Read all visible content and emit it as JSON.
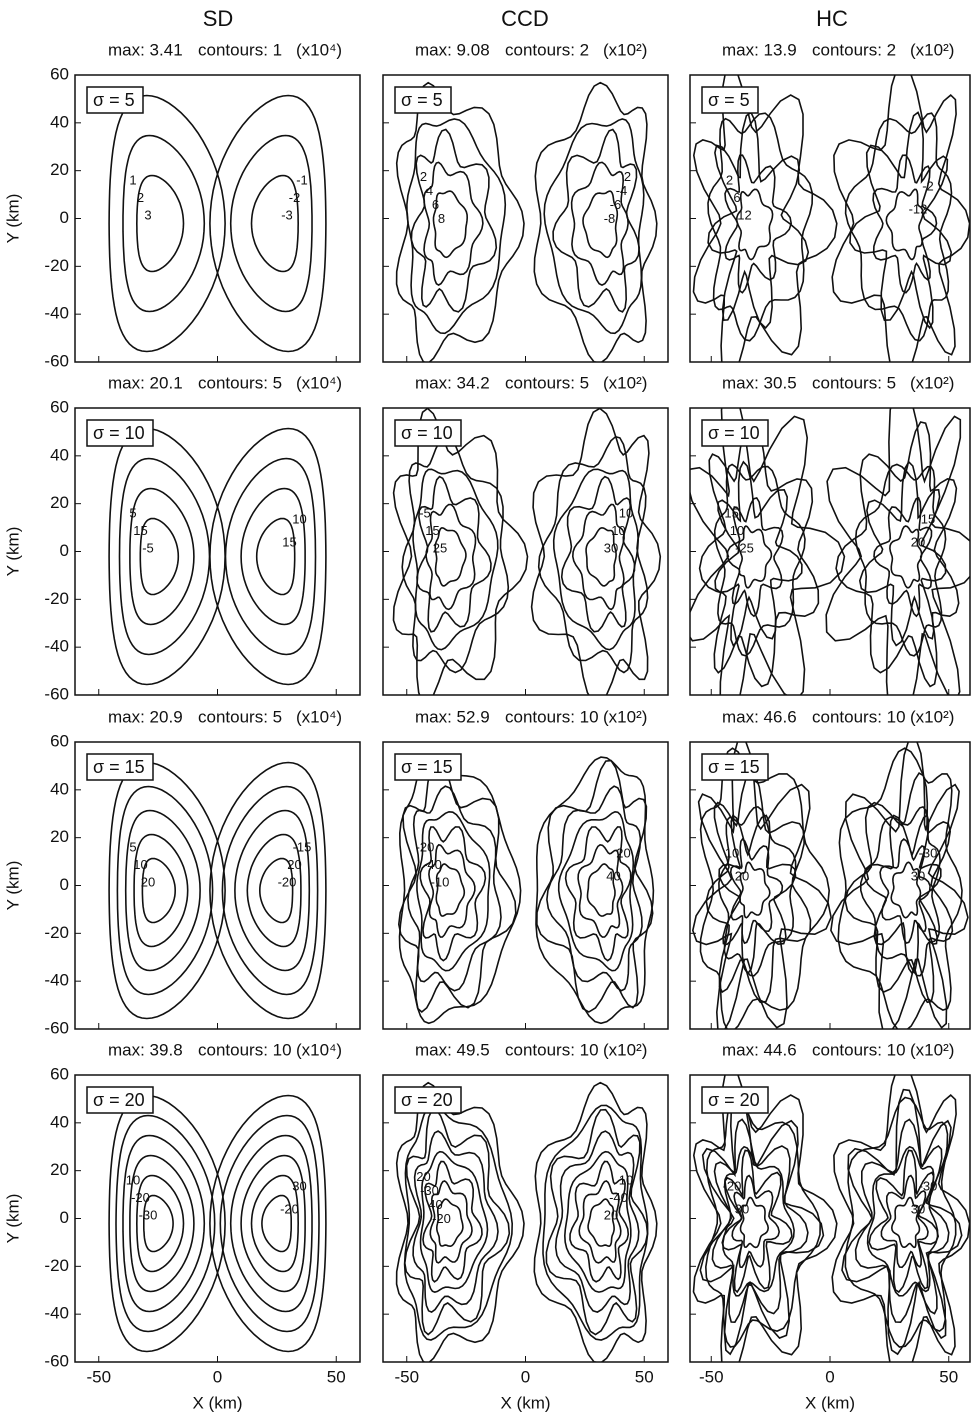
{
  "columns": [
    "SD",
    "CCD",
    "HC"
  ],
  "rows": [
    {
      "sigma": "σ = 5",
      "panels": [
        {
          "max": "max: 3.41",
          "contours": "contours: 1",
          "scale": "(x10⁴)",
          "labels": [
            "1",
            "2",
            "3",
            "-1",
            "-2",
            "-3"
          ]
        },
        {
          "max": "max: 9.08",
          "contours": "contours: 2",
          "scale": "(x10²)",
          "labels": [
            "2",
            "4",
            "6",
            "8",
            "2",
            "-4",
            "-6",
            "-8"
          ]
        },
        {
          "max": "max: 13.9",
          "contours": "contours: 2",
          "scale": "(x10²)",
          "labels": [
            "2",
            "6",
            "12",
            "-2",
            "-12"
          ]
        }
      ]
    },
    {
      "sigma": "σ = 10",
      "panels": [
        {
          "max": "max: 20.1",
          "contours": "contours: 5",
          "scale": "(x10⁴)",
          "labels": [
            "5",
            "15",
            "-5",
            "10",
            "15"
          ]
        },
        {
          "max": "max: 34.2",
          "contours": "contours: 5",
          "scale": "(x10²)",
          "labels": [
            "-5",
            "15",
            "25",
            "10",
            "10",
            "30"
          ]
        },
        {
          "max": "max: 30.5",
          "contours": "contours: 5",
          "scale": "(x10²)",
          "labels": [
            "-15",
            "10",
            "-25",
            "15",
            "20"
          ]
        }
      ]
    },
    {
      "sigma": "σ = 15",
      "panels": [
        {
          "max": "max: 20.9",
          "contours": "contours: 5",
          "scale": "(x10⁴)",
          "labels": [
            "5",
            "10",
            "20",
            "-15",
            "20",
            "-20"
          ]
        },
        {
          "max": "max: 52.9",
          "contours": "contours: 10",
          "scale": "(x10²)",
          "labels": [
            "-20",
            "-40",
            "-10",
            "20",
            "40"
          ]
        },
        {
          "max": "max: 46.6",
          "contours": "contours: 10",
          "scale": "(x10²)",
          "labels": [
            "10",
            "20",
            "-30",
            "30"
          ]
        }
      ]
    },
    {
      "sigma": "σ = 20",
      "panels": [
        {
          "max": "max: 39.8",
          "contours": "contours: 10",
          "scale": "(x10⁴)",
          "labels": [
            "10",
            "-20",
            "-30",
            "30",
            "-20"
          ]
        },
        {
          "max": "max: 49.5",
          "contours": "contours: 10",
          "scale": "(x10²)",
          "labels": [
            "20",
            "-30",
            "40",
            "-20",
            "10",
            "-40",
            "20"
          ]
        },
        {
          "max": "max: 44.6",
          "contours": "contours: 10",
          "scale": "(x10²)",
          "labels": [
            "-20",
            "30",
            "-30",
            "30"
          ]
        }
      ]
    }
  ],
  "y_axis": {
    "label": "Y (km)",
    "ticks": [
      "60",
      "40",
      "20",
      "0",
      "-20",
      "-40",
      "-60"
    ]
  },
  "x_axis": {
    "label": "X (km)",
    "ticks": [
      "-50",
      "0",
      "50"
    ]
  }
}
